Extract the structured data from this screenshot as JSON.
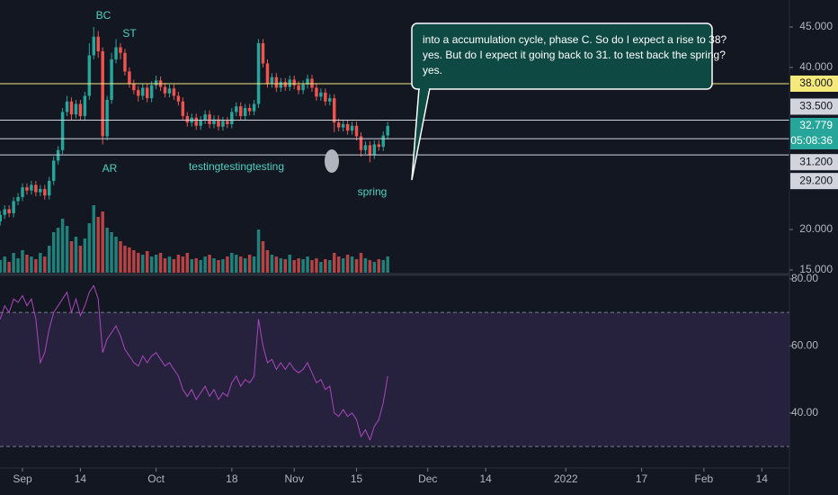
{
  "chart_data": {
    "type": "candlestick",
    "x": [
      1,
      2,
      3,
      4,
      5,
      6,
      7,
      8,
      9,
      10,
      11,
      12,
      13,
      14,
      15,
      16,
      17,
      18,
      19,
      20,
      21,
      22,
      23,
      24,
      25,
      26,
      27,
      28,
      29,
      30,
      31,
      32,
      33,
      34,
      35,
      36,
      37,
      38,
      39,
      40,
      41,
      42,
      43,
      44,
      45,
      46,
      47,
      48,
      49,
      50,
      51,
      52,
      53,
      54,
      55,
      56,
      57,
      58,
      59,
      60,
      61,
      62,
      63,
      64,
      65,
      66,
      67,
      68,
      69,
      70,
      71,
      72,
      73,
      74,
      75,
      76,
      77,
      78,
      79,
      80,
      81,
      82,
      83,
      84,
      85,
      86,
      87,
      88
    ],
    "xlim": [
      0.95,
      178.2
    ],
    "xticks": [
      {
        "value": 6,
        "label": "Sep"
      },
      {
        "value": 19,
        "label": "14"
      },
      {
        "value": 36,
        "label": "Oct"
      },
      {
        "value": 53,
        "label": "18"
      },
      {
        "value": 67,
        "label": "Nov"
      },
      {
        "value": 81,
        "label": "15"
      },
      {
        "value": 97,
        "label": "Dec"
      },
      {
        "value": 110,
        "label": "14"
      },
      {
        "value": 128,
        "label": "2022"
      },
      {
        "value": 145,
        "label": "17"
      },
      {
        "value": 159,
        "label": "Feb"
      },
      {
        "value": 172,
        "label": "14"
      }
    ],
    "open": [
      21.0,
      21.8,
      22.5,
      22.0,
      23.5,
      24.0,
      25.2,
      24.8,
      25.5,
      24.6,
      25.0,
      24.2,
      26.0,
      28.5,
      29.8,
      34.5,
      35.8,
      34.2,
      35.5,
      34.0,
      36.5,
      41.5,
      43.8,
      42.0,
      31.5,
      36.0,
      41.0,
      42.5,
      41.8,
      39.5,
      38.0,
      37.2,
      36.5,
      37.5,
      36.2,
      37.8,
      38.4,
      37.6,
      36.8,
      37.4,
      36.5,
      35.8,
      34.0,
      33.2,
      33.8,
      32.8,
      33.5,
      34.2,
      33.0,
      33.6,
      32.7,
      33.4,
      33.0,
      34.5,
      35.2,
      34.0,
      35.0,
      34.6,
      35.5,
      43.0,
      40.5,
      38.0,
      38.8,
      37.5,
      38.2,
      37.6,
      38.5,
      37.8,
      37.2,
      37.9,
      38.6,
      37.5,
      36.4,
      36.9,
      35.8,
      36.2,
      33.2,
      32.6,
      33.0,
      32.2,
      32.8,
      31.5,
      29.8,
      30.4,
      29.2,
      30.5,
      30.2,
      31.6
    ],
    "high": [
      22.3,
      23.0,
      23.0,
      24.0,
      24.5,
      25.7,
      25.7,
      26.0,
      26.0,
      25.5,
      25.5,
      26.5,
      29.0,
      30.3,
      35.0,
      36.5,
      36.3,
      36.0,
      36.0,
      37.0,
      43.0,
      45.0,
      44.5,
      42.5,
      36.5,
      41.8,
      43.5,
      43.0,
      42.3,
      40.0,
      38.5,
      37.7,
      38.0,
      38.0,
      38.3,
      39.0,
      38.9,
      38.1,
      37.9,
      37.9,
      37.0,
      36.3,
      34.5,
      34.3,
      34.3,
      34.0,
      34.7,
      34.7,
      34.1,
      34.1,
      33.9,
      33.9,
      35.0,
      35.7,
      35.7,
      35.5,
      35.5,
      36.0,
      43.5,
      43.5,
      41.0,
      39.3,
      39.3,
      38.7,
      38.7,
      39.0,
      39.0,
      38.3,
      38.4,
      39.1,
      39.1,
      38.0,
      37.4,
      37.4,
      36.7,
      36.7,
      33.7,
      33.5,
      33.5,
      33.3,
      33.3,
      32.0,
      30.9,
      30.9,
      31.0,
      31.0,
      32.1,
      33.3
    ],
    "low": [
      20.5,
      21.3,
      21.5,
      21.5,
      23.0,
      23.5,
      24.3,
      24.3,
      24.1,
      24.1,
      23.7,
      23.7,
      25.5,
      28.0,
      29.3,
      34.0,
      33.5,
      33.7,
      33.5,
      33.5,
      36.0,
      41.0,
      41.2,
      30.5,
      31.0,
      35.5,
      40.5,
      41.0,
      39.0,
      37.5,
      36.7,
      35.8,
      36.0,
      35.7,
      35.7,
      37.3,
      37.1,
      36.3,
      36.3,
      36.0,
      35.3,
      33.5,
      32.7,
      32.7,
      32.3,
      32.3,
      33.0,
      32.5,
      32.5,
      32.2,
      32.2,
      32.5,
      32.5,
      34.0,
      33.5,
      33.5,
      34.1,
      34.1,
      35.0,
      40.0,
      37.5,
      37.5,
      37.0,
      37.0,
      37.1,
      37.1,
      37.3,
      36.7,
      36.7,
      37.4,
      37.0,
      35.9,
      35.9,
      35.3,
      35.3,
      32.0,
      32.1,
      32.1,
      31.7,
      31.7,
      31.0,
      29.0,
      29.3,
      28.3,
      28.7,
      29.7,
      29.7,
      31.1
    ],
    "close": [
      21.8,
      22.5,
      22.0,
      23.5,
      24.0,
      25.2,
      24.8,
      25.5,
      24.6,
      25.0,
      24.2,
      26.0,
      28.5,
      29.8,
      34.5,
      35.8,
      34.2,
      35.5,
      34.0,
      36.5,
      41.5,
      43.8,
      42.0,
      31.5,
      36.0,
      41.0,
      42.5,
      41.8,
      39.5,
      38.0,
      37.2,
      36.5,
      37.5,
      36.2,
      37.8,
      38.4,
      37.6,
      36.8,
      37.4,
      36.5,
      35.8,
      34.0,
      33.2,
      33.8,
      32.8,
      33.5,
      34.2,
      33.0,
      33.6,
      32.7,
      33.4,
      33.0,
      34.5,
      35.2,
      34.0,
      35.0,
      34.6,
      35.5,
      43.0,
      40.5,
      38.0,
      38.8,
      37.5,
      38.2,
      37.6,
      38.5,
      37.8,
      37.2,
      37.9,
      38.6,
      37.5,
      36.4,
      36.9,
      35.8,
      36.2,
      33.2,
      32.6,
      33.0,
      32.2,
      32.8,
      31.5,
      29.8,
      30.4,
      29.2,
      30.5,
      30.2,
      31.6,
      32.779
    ],
    "volume": [
      14,
      18,
      12,
      22,
      16,
      25,
      20,
      18,
      15,
      22,
      18,
      30,
      45,
      50,
      60,
      52,
      35,
      40,
      30,
      38,
      55,
      75,
      62,
      68,
      50,
      45,
      40,
      35,
      30,
      28,
      25,
      22,
      20,
      24,
      18,
      20,
      22,
      16,
      18,
      15,
      20,
      18,
      22,
      15,
      16,
      14,
      18,
      20,
      16,
      14,
      15,
      18,
      22,
      20,
      18,
      16,
      20,
      18,
      48,
      35,
      25,
      20,
      18,
      16,
      15,
      20,
      14,
      16,
      15,
      18,
      14,
      16,
      12,
      15,
      14,
      22,
      18,
      16,
      20,
      18,
      15,
      22,
      16,
      14,
      12,
      15,
      14,
      18
    ],
    "up_color": "#26a69a",
    "down_color": "#ef5350",
    "ylim": [
      14.44,
      48.33
    ],
    "yticks": [
      {
        "value": 45,
        "label": "45.000"
      },
      {
        "value": 40,
        "label": "40.000"
      },
      {
        "value": 20,
        "label": "20.000"
      },
      {
        "value": 15,
        "label": "15.000"
      }
    ],
    "levels": [
      {
        "value": 38,
        "label": "38.000",
        "color": "#f5e97c"
      },
      {
        "value": 33.5,
        "label": "33.500",
        "color": "#d1d4dc"
      },
      {
        "value": 31.2,
        "label": "31.200",
        "color": "#d1d4dc"
      },
      {
        "value": 29.2,
        "label": "29.200",
        "color": "#d1d4dc"
      }
    ],
    "last": {
      "value": 32.779,
      "label": "32.779",
      "countdown": "05:08:36"
    },
    "annotations": [
      "BC",
      "ST",
      "AR",
      "testingtestingtesting",
      "spring"
    ],
    "callout": [
      "into a accumulation cycle, phase C. So do I expect a rise to 38?",
      "yes. But do I expect it going back to 31. to test back the spring?",
      "yes."
    ],
    "rsi": {
      "values": [
        68,
        72,
        70,
        74,
        73,
        75,
        72,
        74,
        68,
        55,
        58,
        65,
        70,
        72,
        74,
        76,
        70,
        74,
        69,
        72,
        76,
        78,
        74,
        58,
        62,
        64,
        66,
        63,
        59,
        57,
        55,
        54,
        57,
        55,
        57,
        58,
        56,
        54,
        55,
        53,
        51,
        47,
        45,
        47,
        44,
        46,
        48,
        45,
        47,
        44,
        46,
        45,
        49,
        51,
        48,
        50,
        49,
        51,
        68,
        60,
        55,
        56,
        53,
        55,
        53,
        55,
        53,
        52,
        53,
        55,
        52,
        49,
        50,
        47,
        48,
        40,
        39,
        41,
        39,
        40,
        38,
        33,
        35,
        32,
        36,
        38,
        43,
        51
      ],
      "color": "#ab47bc",
      "ylim": [
        23.6,
        81.3
      ],
      "yticks": [
        {
          "value": 80,
          "label": "80.00"
        },
        {
          "value": 60,
          "label": "60.00"
        },
        {
          "value": 40,
          "label": "40.00"
        }
      ],
      "bands": [
        30,
        70
      ]
    }
  }
}
